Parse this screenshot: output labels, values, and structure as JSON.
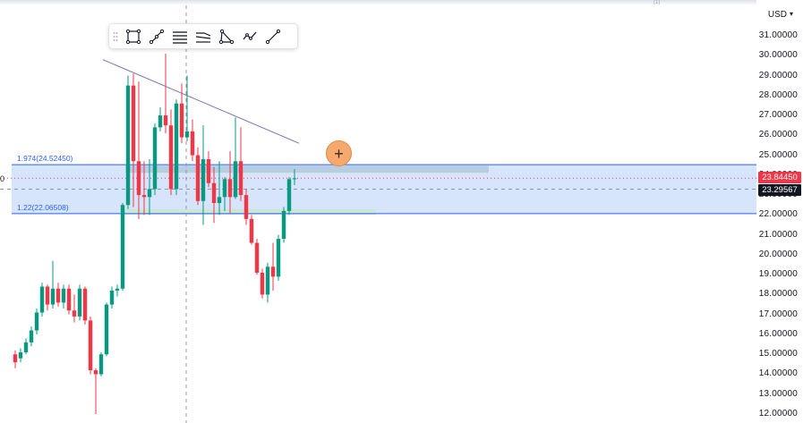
{
  "price_axis": {
    "currency": "USD",
    "labels": [
      "31.00000",
      "30.00000",
      "29.00000",
      "28.00000",
      "27.00000",
      "26.00000",
      "25.00000",
      "24.00000",
      "23.00000",
      "22.00000",
      "21.00000",
      "20.00000",
      "19.00000",
      "18.00000",
      "17.00000",
      "16.00000",
      "15.00000",
      "14.00000",
      "13.00000",
      "12.00000"
    ],
    "current_price": "23.84450",
    "crosshair_price": "23.29567",
    "current_price_color": "#f23645",
    "crosshair_color": "#131722"
  },
  "fib": {
    "upper_label": "1.974(24.52450)",
    "lower_label": "1.22(22.06508)",
    "band_color": "#cfe0fc",
    "line_color": "#2962ff"
  },
  "toolbar": {
    "tools": [
      "rectangle-icon",
      "trend-line-icon",
      "parallel-channel-icon",
      "flat-top-bottom-icon",
      "triangle-pattern-icon",
      "zigzag-icon",
      "ray-icon"
    ]
  },
  "add_button": "+",
  "chart_data": {
    "type": "candlestick",
    "ylim": [
      12.0,
      31.0
    ],
    "up_color": "#089981",
    "down_color": "#f23645",
    "candles": [
      [
        15.0,
        15.2,
        14.3,
        14.6
      ],
      [
        14.8,
        15.3,
        14.6,
        15.1
      ],
      [
        15.1,
        15.8,
        15.0,
        15.6
      ],
      [
        15.6,
        16.4,
        15.4,
        16.2
      ],
      [
        16.2,
        17.3,
        16.0,
        17.1
      ],
      [
        17.1,
        18.6,
        16.9,
        18.4
      ],
      [
        18.4,
        18.5,
        17.2,
        17.5
      ],
      [
        17.5,
        19.7,
        17.3,
        18.3
      ],
      [
        18.3,
        18.6,
        17.4,
        17.6
      ],
      [
        17.6,
        18.5,
        17.3,
        18.3
      ],
      [
        18.3,
        18.5,
        17.0,
        17.2
      ],
      [
        17.2,
        18.0,
        16.6,
        16.9
      ],
      [
        16.9,
        18.5,
        16.7,
        18.3
      ],
      [
        18.3,
        18.4,
        16.5,
        16.7
      ],
      [
        16.7,
        16.9,
        14.0,
        14.2
      ],
      [
        14.2,
        14.3,
        12.0,
        14.0
      ],
      [
        14.0,
        15.1,
        13.9,
        15.0
      ],
      [
        15.0,
        17.6,
        14.9,
        17.5
      ],
      [
        17.5,
        18.4,
        17.3,
        18.2
      ],
      [
        18.2,
        18.5,
        17.9,
        18.3
      ],
      [
        18.3,
        22.6,
        18.2,
        22.5
      ],
      [
        22.5,
        29.0,
        22.3,
        28.5
      ],
      [
        28.5,
        29.1,
        22.4,
        24.7
      ],
      [
        24.7,
        28.7,
        21.8,
        23.0
      ],
      [
        23.0,
        24.7,
        22.0,
        22.9
      ],
      [
        22.9,
        24.8,
        22.0,
        23.3
      ],
      [
        23.3,
        26.6,
        23.0,
        26.4
      ],
      [
        26.4,
        27.4,
        26.2,
        27.0
      ],
      [
        27.0,
        30.1,
        26.1,
        26.5
      ],
      [
        26.5,
        27.3,
        23.0,
        23.3
      ],
      [
        23.3,
        27.8,
        23.0,
        27.6
      ],
      [
        27.6,
        28.6,
        25.6,
        25.9
      ],
      [
        25.9,
        29.0,
        25.7,
        26.2
      ],
      [
        26.2,
        26.8,
        24.7,
        25.0
      ],
      [
        25.0,
        25.4,
        22.5,
        22.7
      ],
      [
        22.7,
        26.5,
        21.5,
        24.8
      ],
      [
        24.8,
        25.2,
        23.4,
        23.6
      ],
      [
        23.6,
        24.4,
        21.6,
        22.6
      ],
      [
        22.6,
        24.7,
        22.0,
        22.9
      ],
      [
        22.9,
        23.9,
        22.2,
        23.8
      ],
      [
        23.8,
        25.2,
        22.1,
        22.9
      ],
      [
        22.9,
        26.9,
        22.8,
        24.7
      ],
      [
        24.7,
        26.4,
        22.7,
        23.0
      ],
      [
        23.0,
        23.3,
        21.5,
        21.8
      ],
      [
        21.8,
        22.0,
        20.5,
        20.6
      ],
      [
        20.6,
        20.8,
        19.0,
        19.1
      ],
      [
        19.1,
        19.3,
        17.8,
        18.0
      ],
      [
        18.0,
        19.6,
        17.6,
        19.4
      ],
      [
        19.4,
        20.6,
        18.2,
        18.9
      ],
      [
        18.9,
        21.0,
        18.7,
        20.8
      ],
      [
        20.8,
        22.4,
        20.6,
        22.2
      ],
      [
        22.2,
        23.9,
        22.0,
        23.8
      ],
      [
        23.8,
        24.3,
        23.5,
        23.84
      ]
    ]
  }
}
